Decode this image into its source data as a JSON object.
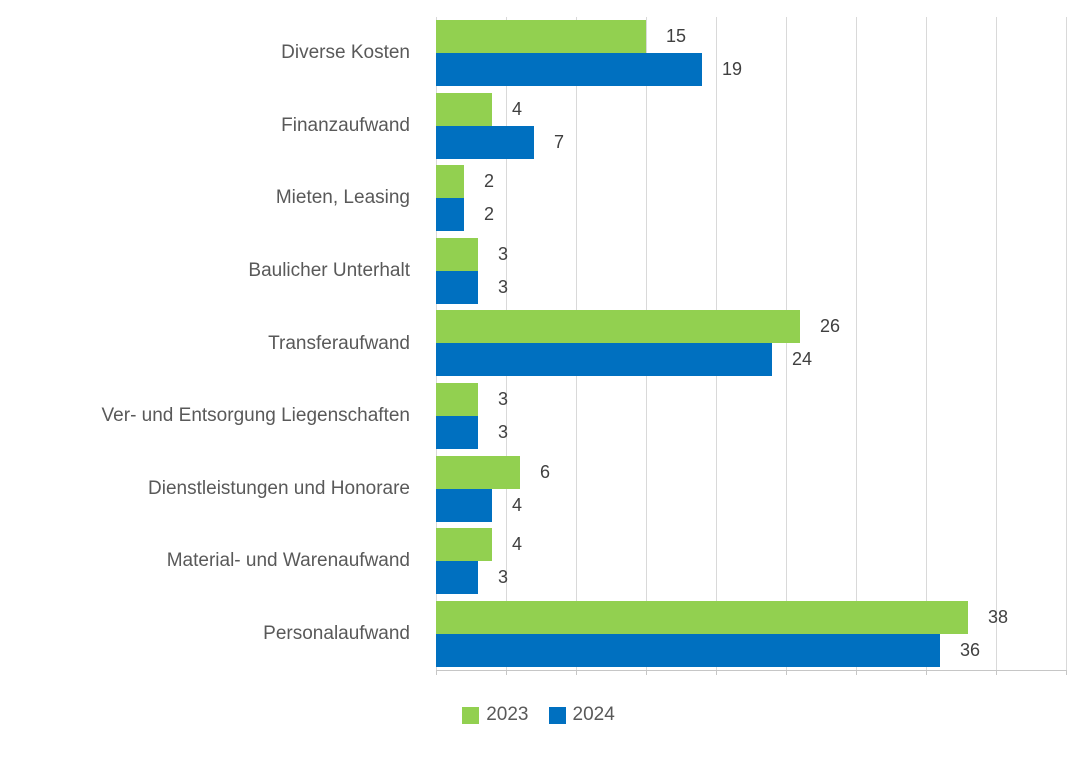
{
  "chart_data": {
    "type": "bar",
    "orientation": "horizontal",
    "title": "",
    "xlabel": "",
    "ylabel": "",
    "xlim": [
      0,
      45
    ],
    "gridline_step": 5,
    "grid": true,
    "legend_position": "bottom-center",
    "categories": [
      "Diverse Kosten",
      "Finanzaufwand",
      "Mieten, Leasing",
      "Baulicher Unterhalt",
      "Transferaufwand",
      "Ver- und Entsorgung Liegenschaften",
      "Dienstleistungen und Honorare",
      "Material- und Warenaufwand",
      "Personalaufwand"
    ],
    "series": [
      {
        "name": "2023",
        "color": "#92D050",
        "values": [
          15,
          4,
          2,
          3,
          26,
          3,
          6,
          4,
          38
        ]
      },
      {
        "name": "2024",
        "color": "#0070C0",
        "values": [
          19,
          7,
          2,
          3,
          24,
          3,
          4,
          3,
          36
        ]
      }
    ]
  },
  "style": {
    "background": "#FFFFFF",
    "grid_color": "#D9D9D9",
    "axis_color": "#C6C6C6",
    "category_text_color": "#595959",
    "value_text_color": "#404040"
  }
}
